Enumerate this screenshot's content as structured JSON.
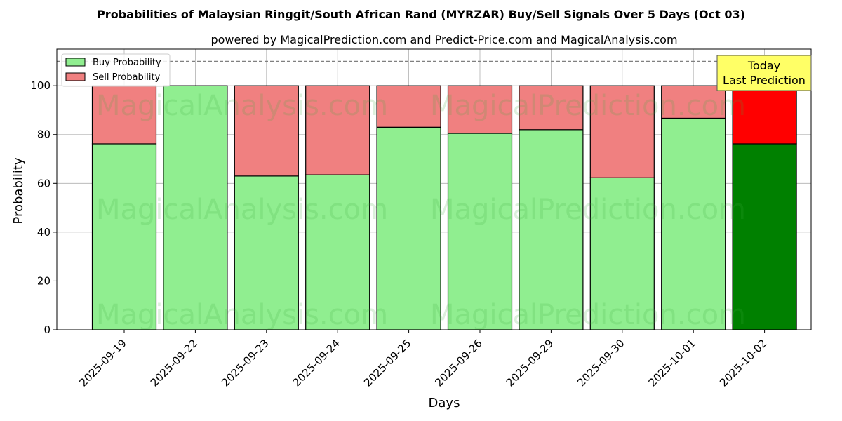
{
  "chart_data": {
    "type": "bar",
    "title": "Probabilities of Malaysian Ringgit/South African Rand (MYRZAR) Buy/Sell Signals Over 5 Days (Oct 03)",
    "subtitle": "powered by MagicalPrediction.com and Predict-Price.com and MagicalAnalysis.com",
    "xlabel": "Days",
    "ylabel": "Probability",
    "ylim": [
      0,
      115
    ],
    "yticks": [
      0,
      20,
      40,
      60,
      80,
      100
    ],
    "reference_line": 110,
    "grid": true,
    "legend_position": "top-left",
    "categories": [
      "2025-09-19",
      "2025-09-22",
      "2025-09-23",
      "2025-09-24",
      "2025-09-25",
      "2025-09-26",
      "2025-09-29",
      "2025-09-30",
      "2025-10-01",
      "2025-10-02"
    ],
    "series": [
      {
        "name": "Buy Probability",
        "values": [
          76.2,
          100,
          63,
          63.5,
          83,
          80.5,
          82,
          62.3,
          86.7,
          76.2
        ]
      },
      {
        "name": "Sell Probability",
        "values": [
          23.8,
          0,
          37,
          36.5,
          17,
          19.5,
          18,
          37.7,
          13.3,
          23.8
        ]
      }
    ],
    "colors": {
      "buy": "#90ee90",
      "sell": "#f08080",
      "buy_highlight": "#008000",
      "sell_highlight": "#ff0000",
      "annotation_bg": "#ffff66"
    },
    "highlight_index": 9,
    "annotation": {
      "line1": "Today",
      "line2": "Last Prediction"
    },
    "watermarks": [
      "MagicalAnalysis.com",
      "MagicalPrediction.com"
    ]
  }
}
